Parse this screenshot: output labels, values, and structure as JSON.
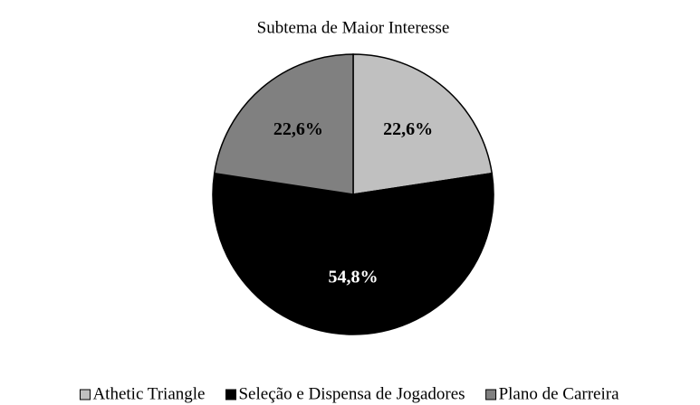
{
  "chart_data": {
    "type": "pie",
    "title": "Subtema de Maior Interesse",
    "categories": [
      "Athetic Triangle",
      "Seleção e Dispensa de Jogadores",
      "Plano de Carreira"
    ],
    "values": [
      22.6,
      54.8,
      22.6
    ],
    "value_labels": [
      "22,6%",
      "54,8%",
      "22,6%"
    ],
    "colors": [
      "#c0c0c0",
      "#000000",
      "#808080"
    ],
    "legend": "bottom"
  }
}
